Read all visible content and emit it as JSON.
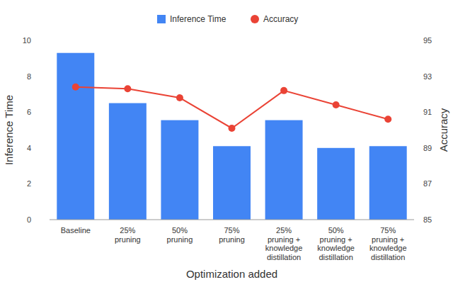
{
  "chart_data": {
    "type": "bar",
    "categories": [
      "Baseline",
      "25% pruning",
      "50% pruning",
      "75% pruning",
      "25% pruning + knowledge distillation",
      "50% pruning + knowledge distillation",
      "75% pruning + knowledge distillation"
    ],
    "series": [
      {
        "name": "Inference Time",
        "type": "bar",
        "color": "#4285f4",
        "values": [
          9.3,
          6.5,
          5.55,
          4.1,
          5.55,
          4.0,
          4.1
        ]
      },
      {
        "name": "Accuracy",
        "type": "line",
        "axis": "y2",
        "color": "#ea4335",
        "marker": "circle",
        "values": [
          92.4,
          92.3,
          91.8,
          90.1,
          92.2,
          91.4,
          90.6
        ]
      }
    ],
    "x_label": "Optimization added",
    "y_label": "Inference Time",
    "y2_label": "Accuracy",
    "ylim": [
      0,
      10
    ],
    "yticks": [
      0,
      2,
      4,
      6,
      8,
      10
    ],
    "y2lim": [
      85,
      95
    ],
    "y2ticks": [
      85,
      87,
      89,
      91,
      93,
      95
    ],
    "grid": false,
    "legend": "top"
  }
}
